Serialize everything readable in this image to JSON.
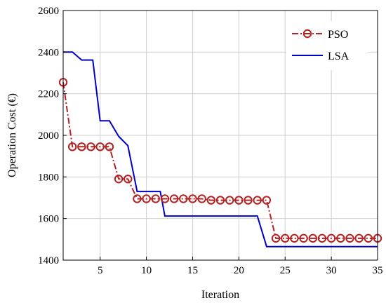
{
  "chart_data": {
    "type": "line",
    "xlabel": "Iteration",
    "ylabel": "Operation Cost (€)",
    "xlim": [
      1,
      35
    ],
    "ylim": [
      1400,
      2600
    ],
    "grid": true,
    "legend_placement": "top-right",
    "x_ticks": [
      5,
      10,
      15,
      20,
      25,
      30,
      35
    ],
    "y_ticks": [
      1400,
      1600,
      1800,
      2000,
      2200,
      2400,
      2600
    ],
    "x": [
      1,
      2,
      3,
      4,
      5,
      6,
      7,
      8,
      9,
      10,
      11,
      12,
      13,
      14,
      15,
      16,
      17,
      18,
      19,
      20,
      21,
      22,
      23,
      24,
      25,
      26,
      27,
      28,
      29,
      30,
      31,
      32,
      33,
      34,
      35
    ],
    "series": [
      {
        "name": "PSO",
        "color": "#b22222",
        "style": "dash-dot with circle markers",
        "values": [
          2255,
          1945,
          1945,
          1945,
          1945,
          1945,
          1790,
          1790,
          1695,
          1695,
          1695,
          1695,
          1695,
          1695,
          1695,
          1695,
          1688,
          1688,
          1688,
          1688,
          1688,
          1688,
          1688,
          1505,
          1505,
          1505,
          1505,
          1505,
          1505,
          1505,
          1505,
          1505,
          1505,
          1505,
          1505
        ]
      },
      {
        "name": "LSA",
        "color": "#0000cd",
        "style": "solid step",
        "points": [
          [
            1,
            2400
          ],
          [
            1.5,
            2400
          ],
          [
            2,
            2400
          ],
          [
            3,
            2362
          ],
          [
            4.2,
            2362
          ],
          [
            5,
            2070
          ],
          [
            6,
            2070
          ],
          [
            7,
            1995
          ],
          [
            8,
            1950
          ],
          [
            9,
            1730
          ],
          [
            10,
            1730
          ],
          [
            11.5,
            1730
          ],
          [
            12,
            1612
          ],
          [
            22,
            1612
          ],
          [
            23,
            1465
          ],
          [
            35,
            1465
          ]
        ]
      }
    ]
  }
}
